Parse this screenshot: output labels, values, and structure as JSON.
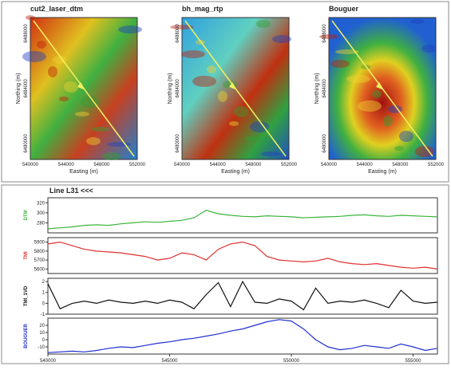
{
  "maps": [
    {
      "title": "cut2_laser_dtm",
      "xlabel": "Easting (m)",
      "ylabel": "Northing (m)",
      "xticks": [
        "540000",
        "544000",
        "548000",
        "552000"
      ],
      "yticks": [
        "6480000",
        "6484000",
        "6488000"
      ]
    },
    {
      "title": "bh_mag_rtp",
      "xlabel": "Easting (m)",
      "ylabel": "Northing (m)",
      "xticks": [
        "540000",
        "544000",
        "548000",
        "552000"
      ],
      "yticks": [
        "6480000",
        "6484000",
        "6488000"
      ]
    },
    {
      "title": "Bouguer",
      "xlabel": "Easting (m)",
      "ylabel": "Northing (m)",
      "xticks": [
        "540000",
        "544000",
        "548000",
        "552000"
      ],
      "yticks": [
        "6480000",
        "6484000",
        "6488000"
      ]
    }
  ],
  "profile_title": "Line L31 <<<",
  "chart_data": [
    {
      "type": "line",
      "ylabel": "DTM",
      "color": "#3cb43c",
      "x": [
        540000,
        540500,
        541000,
        541500,
        542000,
        542500,
        543000,
        543500,
        544000,
        544500,
        545000,
        545500,
        546000,
        546500,
        547000,
        547500,
        548000,
        548500,
        549000,
        549500,
        550000,
        550500,
        551000,
        551500,
        552000,
        552500,
        553000,
        553500,
        554000,
        554500,
        555000,
        555500,
        556000
      ],
      "values": [
        268,
        270,
        272,
        275,
        276,
        275,
        278,
        280,
        282,
        281,
        283,
        285,
        290,
        305,
        298,
        295,
        293,
        292,
        294,
        293,
        292,
        290,
        291,
        292,
        293,
        295,
        296,
        294,
        293,
        295,
        294,
        293,
        292
      ],
      "xlim": [
        540000,
        556000
      ],
      "ylim": [
        260,
        330
      ],
      "yticks": [
        280,
        300,
        320
      ]
    },
    {
      "type": "line",
      "ylabel": "TMI",
      "color": "#e03030",
      "x": [
        540000,
        540500,
        541000,
        541500,
        542000,
        542500,
        543000,
        543500,
        544000,
        544500,
        545000,
        545500,
        546000,
        546500,
        547000,
        547500,
        548000,
        548500,
        549000,
        549500,
        550000,
        550500,
        551000,
        551500,
        552000,
        552500,
        553000,
        553500,
        554000,
        554500,
        555000,
        555500,
        556000
      ],
      "values": [
        5880,
        5900,
        5860,
        5820,
        5800,
        5790,
        5780,
        5760,
        5740,
        5700,
        5720,
        5780,
        5760,
        5700,
        5820,
        5880,
        5900,
        5860,
        5740,
        5700,
        5690,
        5680,
        5690,
        5720,
        5680,
        5660,
        5650,
        5660,
        5640,
        5620,
        5610,
        5620,
        5600
      ],
      "xlim": [
        540000,
        556000
      ],
      "ylim": [
        5550,
        5950
      ],
      "yticks": [
        5600,
        5700,
        5800,
        5900
      ]
    },
    {
      "type": "line",
      "ylabel": "TMI_1VD",
      "color": "#111111",
      "x": [
        540000,
        540500,
        541000,
        541500,
        542000,
        542500,
        543000,
        543500,
        544000,
        544500,
        545000,
        545500,
        546000,
        546500,
        547000,
        547500,
        548000,
        548500,
        549000,
        549500,
        550000,
        550500,
        551000,
        551500,
        552000,
        552500,
        553000,
        553500,
        554000,
        554500,
        555000,
        555500,
        556000
      ],
      "values": [
        1.8,
        -0.5,
        0,
        0.2,
        0,
        0.3,
        0.1,
        0,
        0.2,
        0,
        0.3,
        0.1,
        -0.5,
        0.8,
        1.9,
        -0.3,
        2.0,
        0.1,
        0,
        0.4,
        0.2,
        -0.6,
        1.4,
        0,
        0.2,
        0.1,
        0.3,
        0,
        -0.4,
        1.2,
        0.2,
        0,
        0.1
      ],
      "xlim": [
        540000,
        556000
      ],
      "ylim": [
        -1,
        2.3
      ],
      "yticks": [
        -1,
        0,
        1,
        2
      ]
    },
    {
      "type": "line",
      "ylabel": "BOUGUER",
      "color": "#2030d0",
      "x": [
        540000,
        540500,
        541000,
        541500,
        542000,
        542500,
        543000,
        543500,
        544000,
        544500,
        545000,
        545500,
        546000,
        546500,
        547000,
        547500,
        548000,
        548500,
        549000,
        549500,
        550000,
        550500,
        551000,
        551500,
        552000,
        552500,
        553000,
        553500,
        554000,
        554500,
        555000,
        555500,
        556000
      ],
      "values": [
        -18,
        -17,
        -16,
        -17,
        -15,
        -12,
        -10,
        -11,
        -8,
        -5,
        -3,
        0,
        2,
        5,
        8,
        12,
        15,
        20,
        25,
        28,
        26,
        15,
        0,
        -10,
        -14,
        -12,
        -8,
        -10,
        -12,
        -6,
        -10,
        -15,
        -12
      ],
      "xlim": [
        540000,
        556000
      ],
      "ylim": [
        -20,
        30
      ],
      "yticks": [
        -10,
        0,
        10,
        20
      ],
      "xticks": [
        540000,
        545000,
        550000,
        555000
      ]
    }
  ]
}
